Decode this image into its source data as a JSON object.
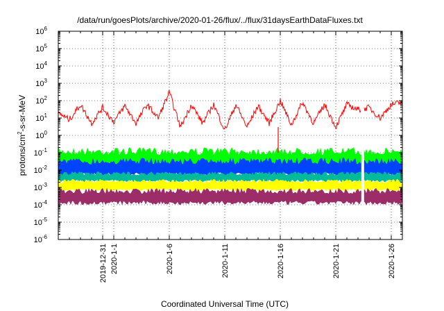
{
  "chart_data": {
    "type": "line",
    "title": "/data/run/goesPlots/archive/2020-01-26/flux/../flux/31daysEarthDataFluxes.txt",
    "xlabel": "Coordinated Universal Time (UTC)",
    "ylabel": {
      "base": "protons/cm",
      "sup": "2",
      "rest": "-s-sr-MeV"
    },
    "y_scale": "log",
    "ylim": [
      1e-06,
      1000000.0
    ],
    "xlim": [
      "2019-12-27",
      "2020-01-27"
    ],
    "grid": true,
    "legend": "none",
    "y_ticks": [
      {
        "base": "10",
        "exp": "-6"
      },
      {
        "base": "10",
        "exp": "-5"
      },
      {
        "base": "10",
        "exp": "-4"
      },
      {
        "base": "10",
        "exp": "-3"
      },
      {
        "base": "10",
        "exp": "-2"
      },
      {
        "base": "10",
        "exp": "-1"
      },
      {
        "base": "10",
        "exp": "0"
      },
      {
        "base": "10",
        "exp": "1"
      },
      {
        "base": "10",
        "exp": "2"
      },
      {
        "base": "10",
        "exp": "3"
      },
      {
        "base": "10",
        "exp": "4"
      },
      {
        "base": "10",
        "exp": "5"
      },
      {
        "base": "10",
        "exp": "6"
      }
    ],
    "x_ticks": [
      {
        "label": "2019-12-31",
        "date": "2019-12-31"
      },
      {
        "label": "2020-1-1",
        "date": "2020-01-01"
      },
      {
        "label": "2020-1-6",
        "date": "2020-01-06"
      },
      {
        "label": "2020-1-11",
        "date": "2020-01-11"
      },
      {
        "label": "2020-1-16",
        "date": "2020-01-16"
      },
      {
        "label": "2020-1-21",
        "date": "2020-01-21"
      },
      {
        "label": "2020-1-26",
        "date": "2020-01-26"
      }
    ],
    "data_gap": [
      "2020-01-23",
      "2020-01-23"
    ],
    "series": [
      {
        "color": "#ff0000",
        "x": [
          "2019-12-27",
          "2019-12-28",
          "2019-12-29",
          "2019-12-30",
          "2019-12-31",
          "2020-01-01",
          "2020-01-02",
          "2020-01-03",
          "2020-01-04",
          "2020-01-05",
          "2020-01-06",
          "2020-01-07",
          "2020-01-08",
          "2020-01-09",
          "2020-01-10",
          "2020-01-11",
          "2020-01-12",
          "2020-01-13",
          "2020-01-14",
          "2020-01-15",
          "2020-01-16",
          "2020-01-17",
          "2020-01-18",
          "2020-01-19",
          "2020-01-20",
          "2020-01-21",
          "2020-01-22",
          "2020-01-23",
          "2020-01-24",
          "2020-01-25",
          "2020-01-26",
          "2020-01-27"
        ],
        "y": [
          20,
          8,
          60,
          5,
          40,
          6,
          50,
          5,
          60,
          10,
          300,
          3,
          60,
          5,
          60,
          2,
          60,
          3,
          50,
          5,
          100,
          4,
          80,
          5,
          60,
          3,
          60,
          30,
          40,
          10,
          60,
          80
        ]
      },
      {
        "color": "#00ff00",
        "x": [
          "2019-12-27",
          "2020-01-27"
        ],
        "y": [
          0.09,
          0.09
        ]
      },
      {
        "color": "#0044ff",
        "x": [
          "2019-12-27",
          "2020-01-27"
        ],
        "y": [
          0.01,
          0.01
        ]
      },
      {
        "color": "#00bb99",
        "x": [
          "2019-12-27",
          "2020-01-27"
        ],
        "y": [
          0.004,
          0.004
        ]
      },
      {
        "color": "#ffff00",
        "x": [
          "2019-12-27",
          "2020-01-27"
        ],
        "y": [
          0.0012,
          0.0012
        ]
      },
      {
        "color": "#9c2d68",
        "x": [
          "2019-12-27",
          "2020-01-27"
        ],
        "y": [
          0.0003,
          0.0003
        ]
      }
    ],
    "band_extents": [
      {
        "color": "#00ff00",
        "low": 0.01,
        "high": 0.2
      },
      {
        "color": "#0044ff",
        "low": 0.004,
        "high": 0.05
      },
      {
        "color": "#00bb99",
        "low": 0.002,
        "high": 0.008
      },
      {
        "color": "#ffff00",
        "low": 0.0006,
        "high": 0.003
      },
      {
        "color": "#9c2d68",
        "low": 0.0001,
        "high": 0.0009
      }
    ]
  }
}
